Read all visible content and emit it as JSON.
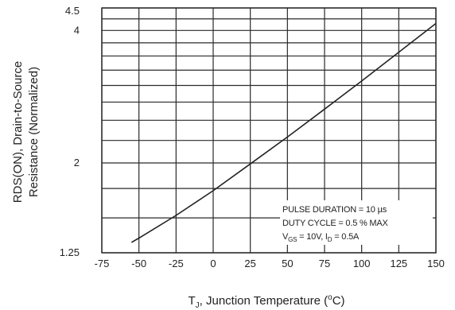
{
  "chart_data": {
    "type": "line",
    "title": "",
    "xlabel": {
      "main": "T",
      "sub": "J",
      "rest": ", Junction Temperature (",
      "sup": "o",
      "end": "C)"
    },
    "ylabel_line1": "RDS(ON), Drain-to-Source",
    "ylabel_line2": "Resistance (Normalized)",
    "x_ticks": [
      "-75",
      "-50",
      "-25",
      "0",
      "25",
      "50",
      "75",
      "100",
      "125",
      "150"
    ],
    "y_tick_labels": [
      "4.5",
      "4",
      "2",
      "1.25"
    ],
    "xlim": [
      -75,
      150
    ],
    "ylim": [
      1.25,
      4.5
    ],
    "grid": true,
    "series": [
      {
        "x": [
          -55,
          -50,
          -25,
          0,
          25,
          50,
          75,
          100,
          125,
          150
        ],
        "y": [
          1.32,
          1.35,
          1.52,
          1.73,
          1.99,
          2.29,
          2.65,
          3.07,
          3.57,
          4.15
        ]
      }
    ],
    "annotation": {
      "line1": "PULSE DURATION = 10 µs",
      "line2": "DUTY CYCLE = 0.5 % MAX",
      "line3_a": "V",
      "line3_sub1": "GS",
      "line3_b": " = 10V, I",
      "line3_sub2": "D",
      "line3_c": " = 0.5A"
    }
  }
}
